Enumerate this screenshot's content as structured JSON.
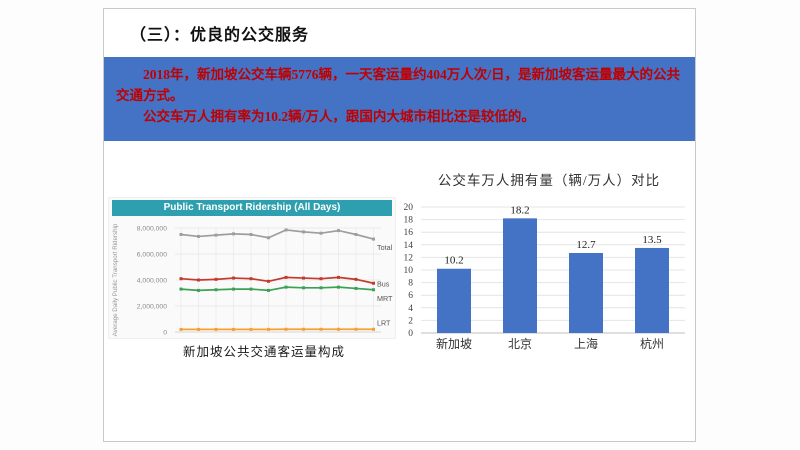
{
  "slide": {
    "title": "（三）：优良的公交服务",
    "highlight_box": {
      "bg_color": "#4472C4",
      "text_color": "#C00000",
      "paragraphs": [
        "2018年，新加坡公交车辆5776辆，一天客运量约404万人次/日，是新加坡客运量最大的公共交通方式。",
        "公交车万人拥有率为10.2辆/万人，跟国内大城市相比还是较低的。"
      ]
    },
    "left_chart_caption": "新加坡公共交通客运量构成"
  },
  "chart_data": [
    {
      "type": "line",
      "title": "Public Transport Ridership (All Days)",
      "title_bg_color": "#2E9FAE",
      "ylabel": "Average Daily Public Transport Ridership",
      "ylim": [
        0,
        8000000
      ],
      "ytick_values": [
        0,
        2000000,
        4000000,
        6000000,
        8000000
      ],
      "ytick_labels": [
        "0",
        "2,000,000",
        "4,000,000",
        "6,000,000",
        "8,000,000"
      ],
      "grid": true,
      "legend_position": "right-of-line-ends",
      "series": [
        {
          "name": "Total",
          "color": "#9e9e9e",
          "label_dy": 9,
          "values": [
            7500000,
            7350000,
            7450000,
            7550000,
            7500000,
            7250000,
            7850000,
            7700000,
            7600000,
            7800000,
            7500000,
            7150000
          ]
        },
        {
          "name": "Bus",
          "color": "#c23b2e",
          "label_dy": 1,
          "values": [
            4100000,
            4000000,
            4050000,
            4150000,
            4100000,
            3900000,
            4200000,
            4150000,
            4100000,
            4200000,
            4050000,
            3750000
          ]
        },
        {
          "name": "MRT",
          "color": "#3aa155",
          "label_dy": 9,
          "values": [
            3300000,
            3200000,
            3250000,
            3300000,
            3300000,
            3200000,
            3450000,
            3400000,
            3400000,
            3450000,
            3350000,
            3250000
          ]
        },
        {
          "name": "LRT",
          "color": "#f5a033",
          "label_dy": -6,
          "values": [
            200000,
            200000,
            200000,
            200000,
            200000,
            200000,
            210000,
            210000,
            210000,
            210000,
            210000,
            210000
          ]
        }
      ]
    },
    {
      "type": "bar",
      "title": "公交车万人拥有量（辆/万人）对比",
      "categories": [
        "新加坡",
        "北京",
        "上海",
        "杭州"
      ],
      "values": [
        10.2,
        18.2,
        12.7,
        13.5
      ],
      "bar_color": "#4472C4",
      "ylim": [
        0,
        20
      ],
      "ytick_step": 2,
      "grid": true,
      "data_labels": [
        "10.2",
        "18.2",
        "12.7",
        "13.5"
      ]
    }
  ]
}
